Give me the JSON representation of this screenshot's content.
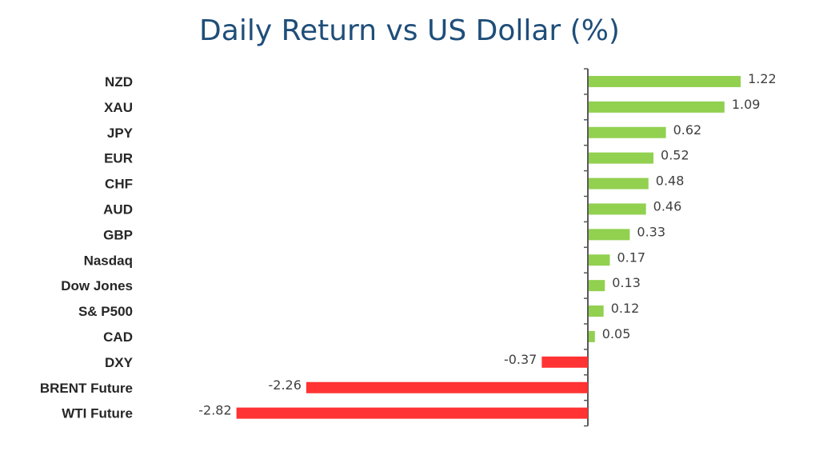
{
  "chart_data": {
    "type": "bar",
    "orientation": "horizontal",
    "title": "Daily Return vs US Dollar (%)",
    "categories": [
      "NZD",
      "XAU",
      "JPY",
      "EUR",
      "CHF",
      "AUD",
      "GBP",
      "Nasdaq",
      "Dow Jones",
      "S& P500",
      "CAD",
      "DXY",
      "BRENT Future",
      "WTI Future"
    ],
    "values": [
      1.22,
      1.09,
      0.62,
      0.52,
      0.48,
      0.46,
      0.33,
      0.17,
      0.13,
      0.12,
      0.05,
      -0.37,
      -2.26,
      -2.82
    ],
    "value_labels": [
      "1.22",
      "1.09",
      "0.62",
      "0.52",
      "0.48",
      "0.46",
      "0.33",
      "0.17",
      "0.13",
      "0.12",
      "0.05",
      "-0.37",
      "-2.26",
      "-2.82"
    ],
    "colors": {
      "positive": "#92d050",
      "negative": "#ff3333",
      "axis": "#595959",
      "title": "#1f4e79"
    },
    "grid": false,
    "legend": "none"
  }
}
